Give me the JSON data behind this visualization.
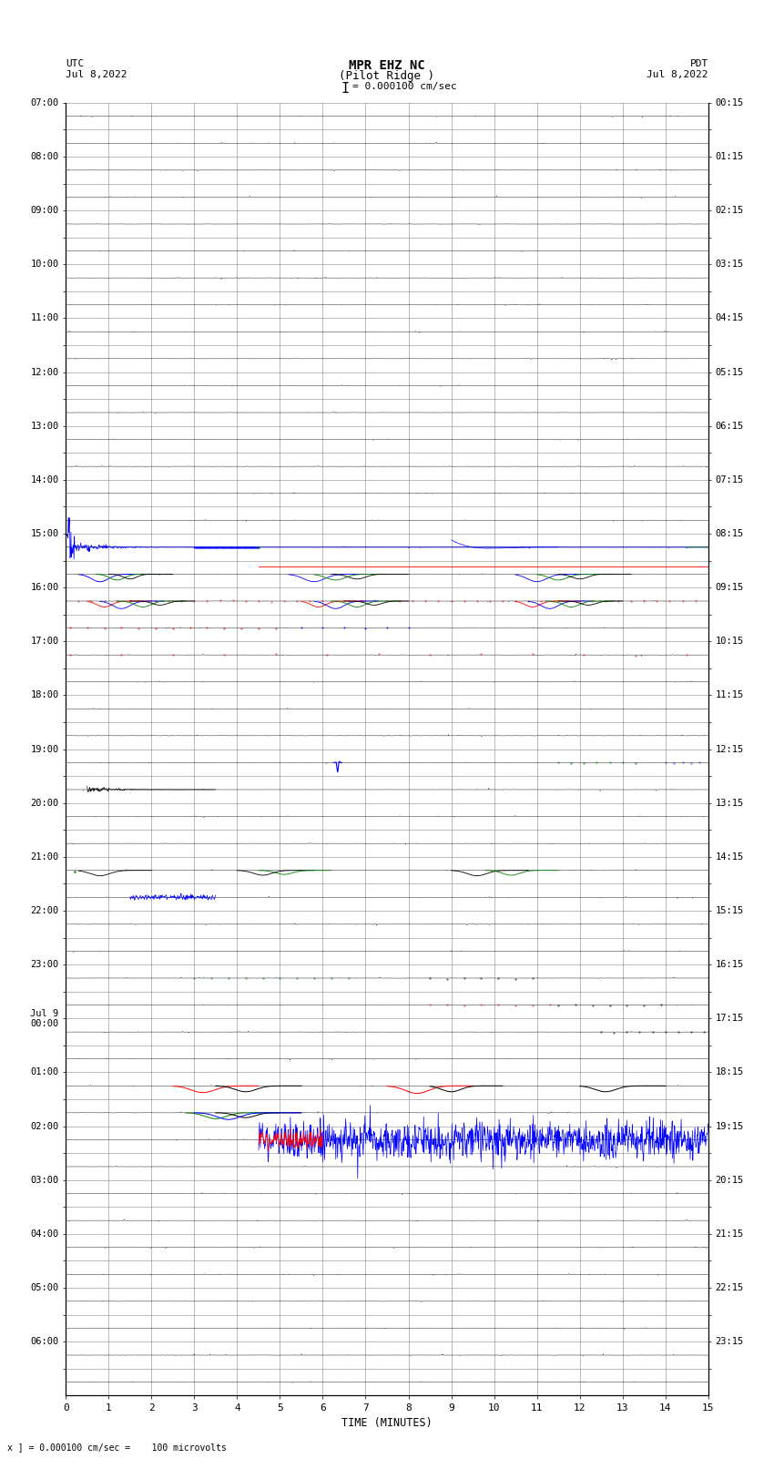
{
  "title_line1": "MPR EHZ NC",
  "title_line2": "(Pilot Ridge )",
  "title_scale": "I = 0.000100 cm/sec",
  "left_label_top": "UTC",
  "left_label_date": "Jul 8,2022",
  "right_label_top": "PDT",
  "right_label_date": "Jul 8,2022",
  "bottom_label": "TIME (MINUTES)",
  "bottom_note": "x ] = 0.000100 cm/sec =    100 microvolts",
  "utc_times": [
    "07:00",
    "08:00",
    "09:00",
    "10:00",
    "11:00",
    "12:00",
    "13:00",
    "14:00",
    "15:00",
    "16:00",
    "17:00",
    "18:00",
    "19:00",
    "20:00",
    "21:00",
    "22:00",
    "23:00",
    "Jul 9\n00:00",
    "01:00",
    "02:00",
    "03:00",
    "04:00",
    "05:00",
    "06:00"
  ],
  "pdt_times": [
    "00:15",
    "01:15",
    "02:15",
    "03:15",
    "04:15",
    "05:15",
    "06:15",
    "07:15",
    "08:15",
    "09:15",
    "10:15",
    "11:15",
    "12:15",
    "13:15",
    "14:15",
    "15:15",
    "16:15",
    "17:15",
    "18:15",
    "19:15",
    "20:15",
    "21:15",
    "22:15",
    "23:15"
  ],
  "n_rows": 48,
  "x_min": 0,
  "x_max": 15,
  "x_ticks": [
    0,
    1,
    2,
    3,
    4,
    5,
    6,
    7,
    8,
    9,
    10,
    11,
    12,
    13,
    14,
    15
  ],
  "bg_color": "#ffffff",
  "trace_color": "#000000",
  "grid_color": "#888888",
  "noise_amp": 0.006
}
